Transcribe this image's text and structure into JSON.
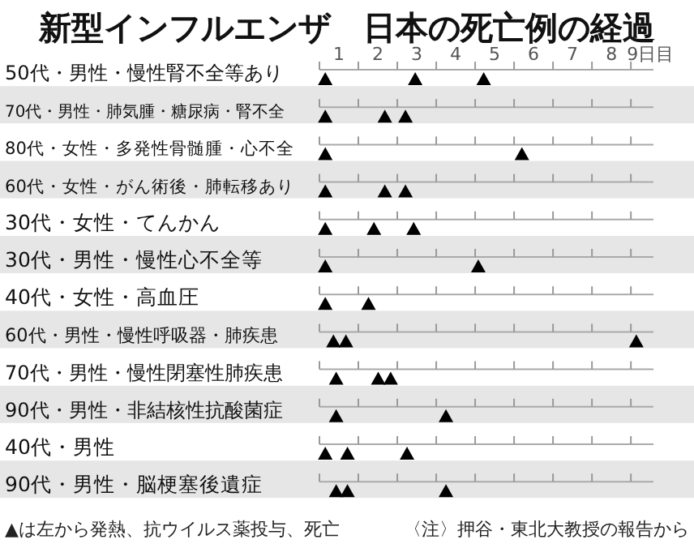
{
  "chart_data": {
    "type": "scatter",
    "orientation": "horizontal",
    "title": "新型インフルエンザ　日本の死亡例の経過",
    "categories": [
      "50代・男性・慢性腎不全等あり",
      "70代・男性・肺気腫・糖尿病・腎不全",
      "80代・女性・多発性骨髄腫・心不全",
      "60代・女性・がん術後・肺転移あり",
      "30代・女性・てんかん",
      "30代・男性・慢性心不全等",
      "40代・女性・高血圧",
      "60代・男性・慢性呼吸器・肺疾患",
      "70代・男性・慢性閉塞性肺疾患",
      "90代・男性・非結核性抗酸菌症",
      "40代・男性",
      "90代・男性・脳梗塞後遺症"
    ],
    "series": [
      {
        "color": "#000000",
        "values": [
          0.15,
          0.15,
          0.15,
          0.15,
          0.15,
          0.15,
          0.15,
          0.36,
          0.43,
          0.43,
          0.15,
          0.43
        ]
      },
      {
        "color": "#000000",
        "values": [
          2.46,
          1.68,
          null,
          1.68,
          1.4,
          null,
          null,
          0.68,
          1.51,
          null,
          0.72,
          0.72
        ]
      },
      {
        "color": "#000000",
        "values": [
          4.22,
          2.21,
          5.2,
          2.21,
          2.42,
          4.08,
          1.26,
          8.14,
          1.83,
          3.25,
          2.25,
          3.25
        ]
      }
    ],
    "marker": "triangle",
    "grid": true,
    "xlim": [
      0,
      8.58
    ],
    "xticks": [
      {
        "value": 0,
        "label": null
      },
      {
        "value": 0.5,
        "label": "1"
      },
      {
        "value": 1,
        "label": null
      },
      {
        "value": 1.5,
        "label": "2"
      },
      {
        "value": 2,
        "label": null
      },
      {
        "value": 2.5,
        "label": "3"
      },
      {
        "value": 3,
        "label": null
      },
      {
        "value": 3.5,
        "label": "4"
      },
      {
        "value": 4,
        "label": null
      },
      {
        "value": 4.5,
        "label": "5"
      },
      {
        "value": 5,
        "label": null
      },
      {
        "value": 5.5,
        "label": "6"
      },
      {
        "value": 6,
        "label": null
      },
      {
        "value": 6.5,
        "label": "7"
      },
      {
        "value": 7,
        "label": null
      },
      {
        "value": 7.5,
        "label": "8"
      },
      {
        "value": 8,
        "label": null
      },
      {
        "value": 8.5,
        "label": "9日目"
      }
    ],
    "annotations": [
      "▲は左から発熱、抗ウイルス薬投与、死亡",
      "〈注〉押谷・東北大教授の報告から"
    ]
  }
}
